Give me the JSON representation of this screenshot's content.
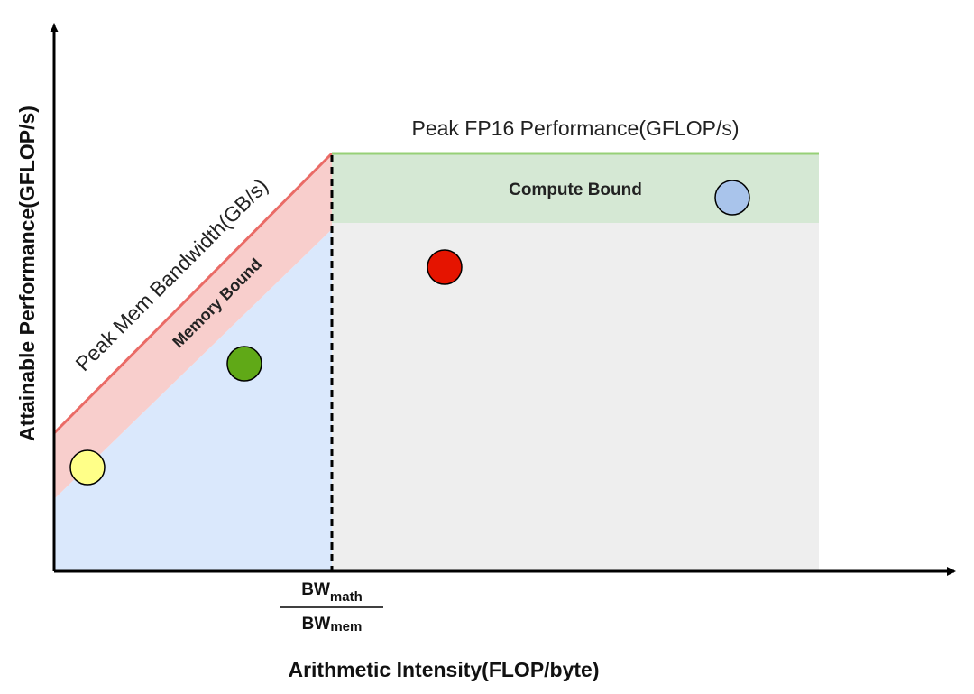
{
  "roofline": {
    "xlabel": "Arithmetic Intensity(FLOP/byte)",
    "ylabel": "Attainable Performance(GFLOP/s)",
    "ridge_label": {
      "numerator": "BW",
      "numerator_sub": "math",
      "denominator": "BW",
      "denominator_sub": "mem"
    },
    "roof_labels": {
      "compute": "Peak FP16 Performance(GFLOP/s)",
      "memory": "Peak Mem Bandwidth(GB/s)"
    },
    "region_labels": {
      "compute_bound": "Compute Bound",
      "memory_bound": "Memory Bound"
    },
    "colors": {
      "memory_region": "#dae8fc",
      "memory_band": "#f8cecc",
      "memory_roof": "#ea6b66",
      "compute_region": "#eeeeee",
      "compute_band": "#d5e8d4",
      "compute_roof": "#97d077",
      "axis": "#000000"
    },
    "points": [
      {
        "name": "yellow-point",
        "color": "#ffff88"
      },
      {
        "name": "green-point",
        "color": "#60a917"
      },
      {
        "name": "red-point",
        "color": "#e51400"
      },
      {
        "name": "blue-point",
        "color": "#a9c4eb"
      }
    ]
  }
}
